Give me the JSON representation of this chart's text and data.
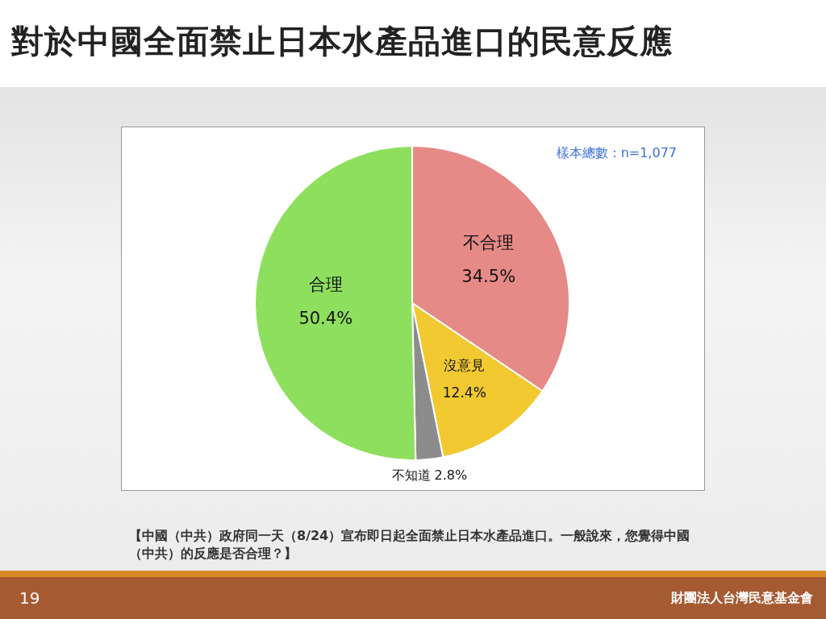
{
  "chart_data": {
    "type": "pie",
    "title": "對於中國全面禁止日本水產品進口的民意反應",
    "categories": [
      "不合理",
      "沒意見",
      "不知道",
      "合理"
    ],
    "values": [
      34.5,
      12.4,
      2.8,
      50.4
    ],
    "value_labels": [
      "34.5%",
      "12.4%",
      "2.8%",
      "50.4%"
    ],
    "colors": [
      "#e68a87",
      "#f2c931",
      "#8c8c8c",
      "#8fdf5f"
    ],
    "legend": false,
    "annotations": [
      "樣本總數：n=1,077",
      "【中國（中共）政府同一天（8/24）宣布即日起全面禁止日本水產品進口。一般說來，您覺得中國（中共）的反應是否合理？】",
      "19",
      "財團法人台灣民意基金會"
    ]
  }
}
